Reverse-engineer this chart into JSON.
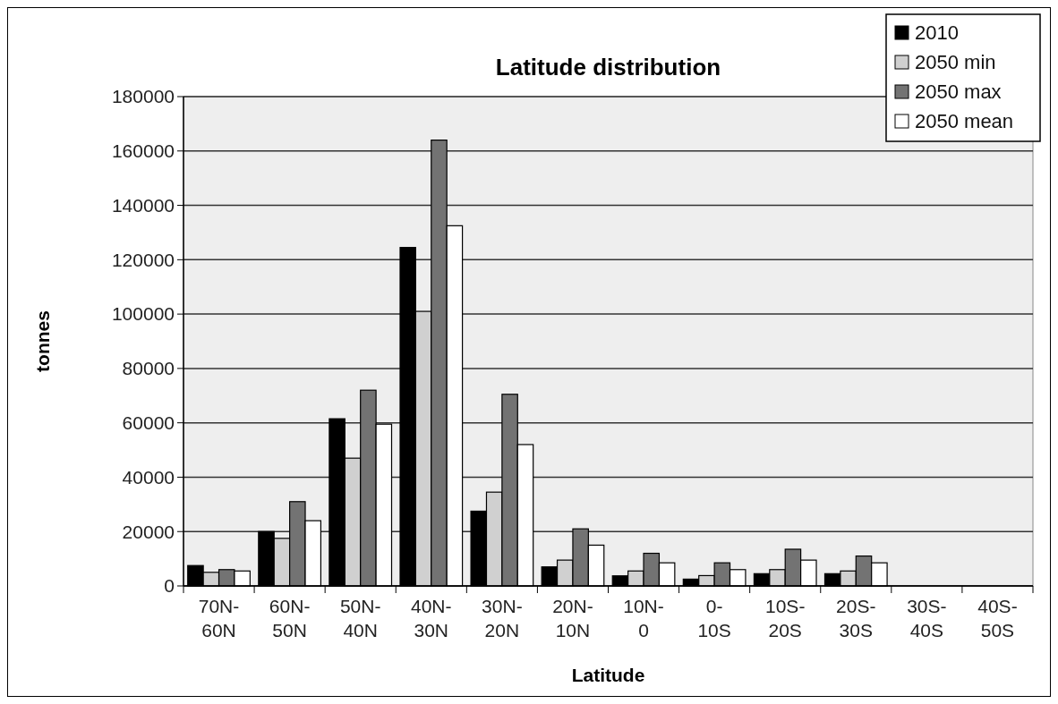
{
  "chart_data": {
    "type": "bar",
    "title": "Latitude distribution",
    "xlabel": "Latitude",
    "ylabel": "tonnes",
    "categories": [
      "70N-60N",
      "60N-50N",
      "50N-40N",
      "40N-30N",
      "30N-20N",
      "20N-10N",
      "10N-0",
      "0-10S",
      "10S-20S",
      "20S-30S",
      "30S-40S",
      "40S-50S"
    ],
    "series": [
      {
        "name": "2010",
        "color": "#000000",
        "values": [
          7500,
          20000,
          61500,
          124500,
          27500,
          7000,
          3700,
          2500,
          4500,
          4500,
          null,
          0
        ]
      },
      {
        "name": "2050 min",
        "color": "#d0d0d0",
        "values": [
          5000,
          17500,
          47000,
          101000,
          34500,
          9500,
          5500,
          3800,
          6000,
          5500,
          null,
          0
        ]
      },
      {
        "name": "2050 max",
        "color": "#737373",
        "values": [
          6000,
          31000,
          72000,
          164000,
          70500,
          21000,
          12000,
          8500,
          13500,
          11000,
          null,
          0
        ]
      },
      {
        "name": "2050 mean",
        "color": "#ffffff",
        "values": [
          5500,
          24000,
          59500,
          132500,
          52000,
          15000,
          8500,
          6000,
          9500,
          8500,
          null,
          0
        ]
      }
    ],
    "ylim": [
      0,
      180000
    ],
    "yticks": [
      0,
      20000,
      40000,
      60000,
      80000,
      100000,
      120000,
      140000,
      160000,
      180000
    ],
    "grid": "y",
    "legend": "top right"
  }
}
